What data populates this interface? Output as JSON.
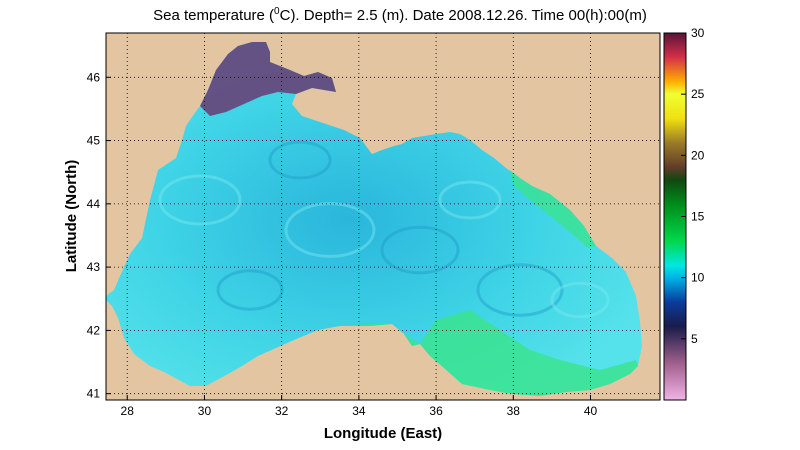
{
  "title": {
    "prefix": "Sea temperature (",
    "sup": "0",
    "suffix": "C). Depth=  2.5 (m). Date 2008.12.26. Time 00(h):00(m)"
  },
  "axes": {
    "xlabel": "Longitude (East)",
    "ylabel": "Latitude (North)",
    "xlim": [
      27.45,
      41.8
    ],
    "ylim": [
      40.9,
      46.7
    ],
    "xticks": [
      28,
      30,
      32,
      34,
      36,
      38,
      40
    ],
    "yticks": [
      41,
      42,
      43,
      44,
      45,
      46
    ],
    "grid": "dotted"
  },
  "colorbar": {
    "range": [
      0,
      30
    ],
    "ticks": [
      5,
      10,
      15,
      20,
      25,
      30
    ],
    "colors": {
      "0": "#f0b4e6",
      "3": "#a0608c",
      "6": "#1a1c4a",
      "8": "#0a3c9c",
      "10": "#00b4e6",
      "11": "#00e8e0",
      "13": "#00d84a",
      "16": "#008c1a",
      "18": "#104810",
      "19": "#603c28",
      "21": "#9a7a28",
      "23": "#f0e010",
      "25": "#f0ff30",
      "26": "#ffb000",
      "28": "#d43048",
      "30": "#5a1438"
    }
  },
  "map": {
    "land_color": "#e3c6a1",
    "sea_color": "#3cd6e4",
    "warm_south_color": "#3ae48a",
    "cold_nw_color": "#6a3a72"
  }
}
